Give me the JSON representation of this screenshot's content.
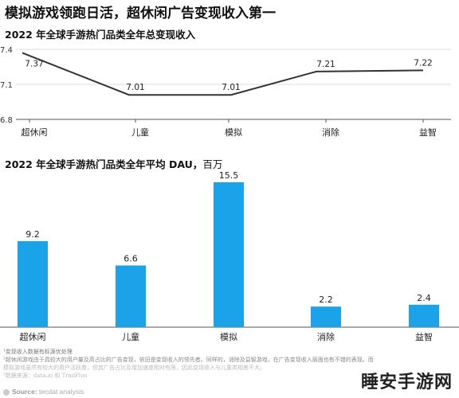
{
  "headline": "模拟游戏领跑日活，超休闲广告变现收入第一",
  "chart_data": [
    {
      "type": "line",
      "title": "2022 年全球手游热门品类全年总变现收入",
      "categories": [
        "超休闲",
        "儿童",
        "模拟",
        "消除",
        "益智"
      ],
      "series": [
        {
          "values": [
            7.37,
            7.01,
            7.01,
            7.21,
            7.22
          ]
        }
      ],
      "data_labels": [
        "7.37",
        "7.01",
        "7.01",
        "7.21",
        "7.22"
      ],
      "y_ticks": [
        "7.4",
        "7.1",
        "6.8"
      ],
      "ylim": [
        6.8,
        7.4
      ],
      "grid": true,
      "color": "#333333"
    },
    {
      "type": "bar",
      "title": "2022 年全球手游热门品类全年平均 DAU，",
      "unit": "百万",
      "categories": [
        "超休闲",
        "儿童",
        "模拟",
        "消除",
        "益智"
      ],
      "values": [
        9.2,
        6.6,
        15.5,
        2.2,
        2.4
      ],
      "data_labels": [
        "9.2",
        "6.6",
        "15.5",
        "2.2",
        "2.4"
      ],
      "ylim": [
        0,
        15.5
      ],
      "color": "#1aa3e8"
    }
  ],
  "footnotes": {
    "note1": "¹变现收入数据有标源优处理",
    "note2": "²超休闲游戏由于具较大的用户量及高占比的广告变现，依旧是变现收入的领先者。同样的，消除及益智游戏，在广告变现收入层面也有不错的表现。而",
    "note3": "模拟游戏虽然有较大的用户活跃度，但其广告占比及增加速度相对有限，因此变现收入与儿童类相差不大。",
    "note4": "³数据来源：data.ai 和 TradPlus"
  },
  "source": {
    "label": "Source:",
    "text": "tecdat analysis"
  },
  "watermark": "睡安手游网"
}
